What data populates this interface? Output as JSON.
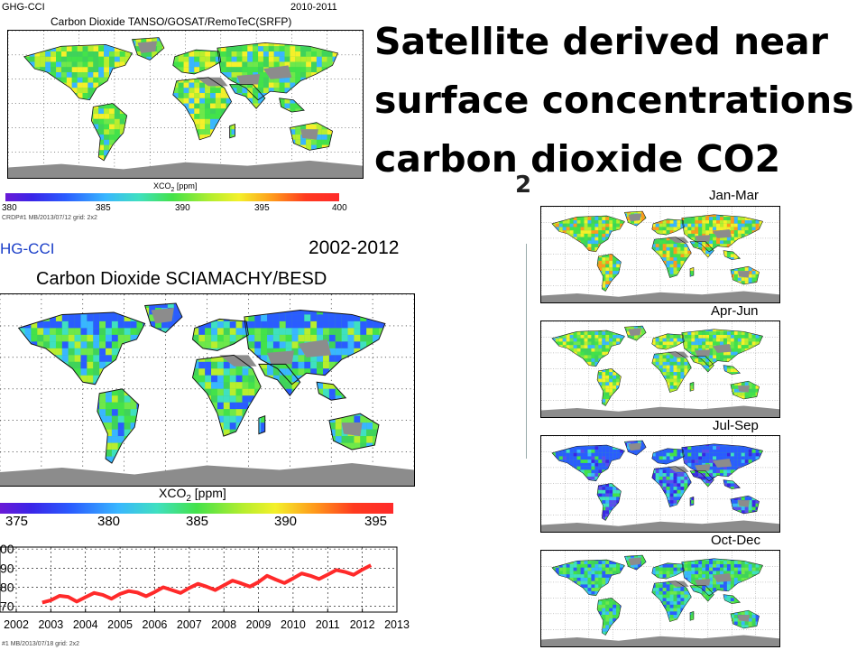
{
  "slide": {
    "title_lines": [
      "Satellite derived near",
      "surface concentrations",
      "carbon dioxide CO2"
    ],
    "hidden_fragment": "2"
  },
  "top_panel": {
    "project": "GHG-CCI",
    "period": "2010-2011",
    "title": "Carbon Dioxide TANSO/GOSAT/RemoTeC(SRFP)",
    "colorbar_label_main": "XCO",
    "colorbar_label_sub": "2",
    "colorbar_label_unit": " [ppm]",
    "colorbar_ticks": [
      "380",
      "385",
      "390",
      "395",
      "400"
    ],
    "footer": "CRDP#1 MB/2013/07/12 grid: 2x2"
  },
  "bottom_panel": {
    "project": "HG-CCI",
    "period": "2002-2012",
    "title": "Carbon Dioxide SCIAMACHY/BESD",
    "colorbar_label_main": "XCO",
    "colorbar_label_sub": "2",
    "colorbar_label_unit": " [ppm]",
    "colorbar_ticks": [
      "375",
      "380",
      "385",
      "390",
      "395"
    ],
    "footer": "#1 MB/2013/07/18 grid: 2x2"
  },
  "seasons": {
    "labels": [
      "Jan-Mar",
      "Apr-Jun",
      "Jul-Sep",
      "Oct-Dec"
    ]
  },
  "colors": {
    "ocean": "#ffffff",
    "antarctica": "#8c8c8c",
    "land_base": "#3fd35a",
    "trend_line": "#ff2a2a",
    "project_blue": "#1a3ec8"
  },
  "chart_data": {
    "type": "line",
    "title": "",
    "xlabel": "",
    "ylabel": "",
    "x_ticks": [
      "2002",
      "2003",
      "2004",
      "2005",
      "2006",
      "2007",
      "2008",
      "2009",
      "2010",
      "2011",
      "2012",
      "2013"
    ],
    "y_ticks": [
      "00",
      "90",
      "80",
      "70"
    ],
    "xlim": [
      2002,
      2013
    ],
    "ylim": [
      367,
      401
    ],
    "grid": true,
    "series": [
      {
        "x": [
          2002.75,
          2003.0,
          2003.25,
          2003.5,
          2003.75,
          2004.0,
          2004.25,
          2004.5,
          2004.75,
          2005.0,
          2005.25,
          2005.5,
          2005.75,
          2006.0,
          2006.25,
          2006.5,
          2006.75,
          2007.0,
          2007.25,
          2007.5,
          2007.75,
          2008.0,
          2008.25,
          2008.5,
          2008.75,
          2009.0,
          2009.25,
          2009.5,
          2009.75,
          2010.0,
          2010.25,
          2010.5,
          2010.75,
          2011.0,
          2011.25,
          2011.5,
          2011.75,
          2012.0,
          2012.25
        ],
        "values": [
          372.0,
          373.2,
          375.5,
          375.0,
          372.5,
          374.8,
          377.0,
          376.0,
          374.0,
          376.5,
          378.0,
          377.2,
          375.3,
          377.5,
          380.0,
          378.5,
          377.0,
          379.6,
          381.8,
          380.3,
          378.5,
          381.0,
          383.5,
          382.0,
          380.3,
          382.7,
          386.0,
          384.0,
          382.2,
          384.6,
          387.2,
          386.0,
          384.3,
          386.6,
          389.0,
          388.0,
          386.5,
          389.2,
          391.5
        ]
      }
    ]
  }
}
